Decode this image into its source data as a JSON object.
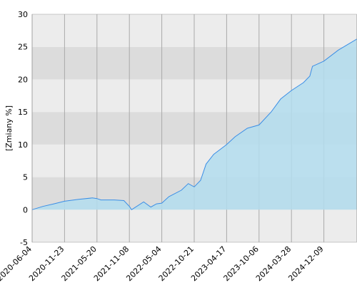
{
  "chart_data": {
    "type": "area",
    "y_label": "[Zmiany %]",
    "x": [
      "2020-06-04",
      "2020-07-31",
      "2020-09-27",
      "2020-11-23",
      "2021-02-09",
      "2021-04-25",
      "2021-05-20",
      "2021-06-10",
      "2021-08-20",
      "2021-10-10",
      "2021-11-08",
      "2021-11-20",
      "2022-01-25",
      "2022-03-05",
      "2022-04-05",
      "2022-05-04",
      "2022-06-10",
      "2022-08-15",
      "2022-09-20",
      "2022-10-21",
      "2022-11-25",
      "2022-12-25",
      "2023-02-05",
      "2023-04-17",
      "2023-06-01",
      "2023-08-05",
      "2023-10-06",
      "2023-12-10",
      "2024-01-30",
      "2024-03-28",
      "2024-06-30",
      "2024-08-20",
      "2024-09-10",
      "2024-12-09",
      "2025-04-01",
      "2025-08-26"
    ],
    "values": [
      0,
      0.5,
      0.9,
      1.3,
      1.6,
      1.8,
      1.7,
      1.5,
      1.5,
      1.4,
      0.5,
      0.0,
      1.2,
      0.4,
      0.9,
      1.0,
      2.0,
      3.0,
      4.0,
      3.5,
      4.5,
      7.0,
      8.5,
      10.0,
      11.2,
      12.5,
      13.0,
      15.0,
      17.0,
      18.3,
      19.5,
      20.5,
      22.0,
      22.8,
      24.5,
      26.2
    ],
    "color": "#3a8ee6",
    "fill": "#b3ddef",
    "xlim": [
      "2020-06-04",
      "2025-08-26"
    ],
    "xticks": [
      "2020-06-04",
      "2020-11-23",
      "2021-05-20",
      "2021-11-08",
      "2022-05-04",
      "2022-10-21",
      "2023-04-17",
      "2023-10-06",
      "2024-03-28",
      "2024-12-09"
    ],
    "ylim": [
      -5,
      30
    ],
    "yticks": [
      -5,
      0,
      5,
      10,
      15,
      20,
      25,
      30
    ],
    "grid": true
  }
}
